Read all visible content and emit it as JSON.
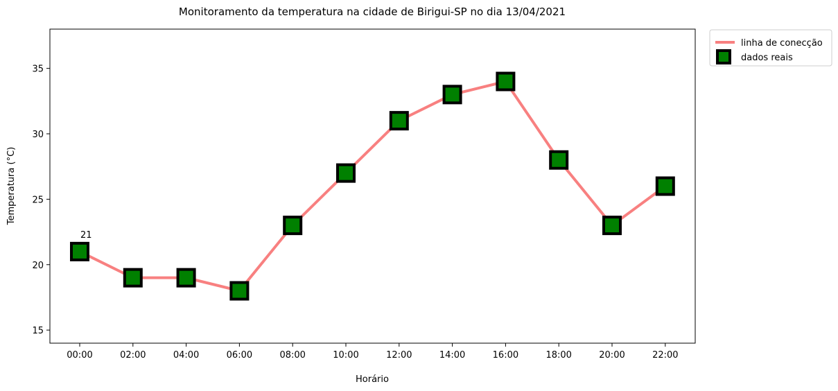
{
  "chart_data": {
    "type": "line",
    "title": "Monitoramento da temperatura na cidade de Birigui-SP no dia 13/04/2021",
    "xlabel": "Horário",
    "ylabel": "Temperatura (°C)",
    "categories": [
      "00:00",
      "02:00",
      "04:00",
      "06:00",
      "08:00",
      "10:00",
      "12:00",
      "14:00",
      "16:00",
      "18:00",
      "20:00",
      "22:00"
    ],
    "values": [
      21,
      19,
      19,
      18,
      23,
      27,
      31,
      33,
      34,
      28,
      23,
      26
    ],
    "ylim": [
      14,
      38
    ],
    "yticks": [
      15,
      20,
      25,
      30,
      35
    ],
    "grid": false,
    "legend_placement": "outside-top-right",
    "legend": {
      "line_label": "linha de conecção",
      "marker_label": "dados reais"
    },
    "annotations": [
      {
        "x": "00:00",
        "text": "21"
      }
    ],
    "colors": {
      "line": "#f88080",
      "marker_face": "#008000",
      "marker_edge": "#000000"
    }
  }
}
